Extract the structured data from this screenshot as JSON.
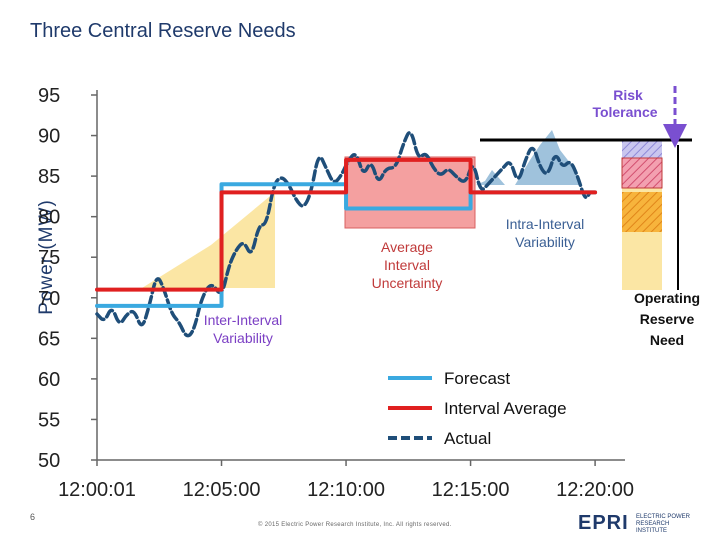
{
  "title": "Three Central Reserve Needs",
  "colors": {
    "forecast": "#3aa9e0",
    "interval_average": "#e02020",
    "actual": "#1f4e79",
    "uncertainty_fill": "#f4a0a0",
    "inter_interval_fill": "#fbe6a4",
    "intra_interval_fill": "#9fc2dc",
    "risk_tolerance": "#7a4fd0",
    "inter_label": "#7b3fc4",
    "intra_label": "#3a5f94",
    "avg_label": "#c03a3a"
  },
  "annotations": {
    "risk_tolerance": "Risk Tolerance",
    "average_interval_uncertainty": "Average Interval Uncertainty",
    "intra_interval_variability": "Intra-Interval Variability",
    "inter_interval_variability": "Inter-Interval Variability",
    "operating_reserve_need": "Operating Reserve Need"
  },
  "footer": {
    "page_number": "6",
    "copyright": "© 2015 Electric Power Research Institute, Inc. All rights reserved.",
    "logo_mark": "EPRI",
    "logo_text": "ELECTRIC POWER RESEARCH INSTITUTE"
  },
  "chart_data": {
    "type": "line",
    "title": "Three Central Reserve Needs",
    "xlabel": "",
    "ylabel": "Power (MW)",
    "ylim": [
      50,
      95
    ],
    "yticks": [
      95,
      90,
      85,
      80,
      75,
      70,
      65,
      60,
      55,
      50
    ],
    "xticks": [
      "12:00:01",
      "12:05:00",
      "12:10:00",
      "12:15:00",
      "12:20:00"
    ],
    "xlim_minutes": [
      0,
      21
    ],
    "legend_position": "bottom-right",
    "grid": false,
    "series": [
      {
        "name": "Forecast",
        "style": "step",
        "points": [
          [
            0,
            69
          ],
          [
            5,
            69
          ],
          [
            5,
            84
          ],
          [
            10,
            84
          ],
          [
            10,
            81
          ],
          [
            15,
            81
          ],
          [
            15,
            83
          ],
          [
            20,
            83
          ]
        ]
      },
      {
        "name": "Interval Average",
        "style": "step",
        "points": [
          [
            0,
            71
          ],
          [
            5,
            71
          ],
          [
            5,
            83
          ],
          [
            10,
            83
          ],
          [
            10,
            87
          ],
          [
            15,
            87
          ],
          [
            15,
            83
          ],
          [
            20,
            83
          ]
        ]
      },
      {
        "name": "Actual",
        "style": "dashed",
        "points": [
          [
            0,
            68
          ],
          [
            0.3,
            67
          ],
          [
            0.6,
            69
          ],
          [
            0.9,
            66.5
          ],
          [
            1.2,
            68
          ],
          [
            1.5,
            68.5
          ],
          [
            1.8,
            66
          ],
          [
            2.1,
            69
          ],
          [
            2.4,
            73
          ],
          [
            2.7,
            71
          ],
          [
            3.0,
            68
          ],
          [
            3.3,
            67
          ],
          [
            3.6,
            65
          ],
          [
            3.9,
            66
          ],
          [
            4.2,
            70
          ],
          [
            4.6,
            72
          ],
          [
            5.0,
            70
          ],
          [
            5.3,
            74
          ],
          [
            5.6,
            76
          ],
          [
            5.9,
            77
          ],
          [
            6.2,
            75
          ],
          [
            6.5,
            79
          ],
          [
            6.8,
            79
          ],
          [
            7.1,
            84
          ],
          [
            7.4,
            85
          ],
          [
            7.7,
            84
          ],
          [
            8.0,
            82
          ],
          [
            8.3,
            81
          ],
          [
            8.6,
            83
          ],
          [
            8.9,
            88
          ],
          [
            9.2,
            86
          ],
          [
            9.5,
            84
          ],
          [
            9.8,
            85
          ],
          [
            10.1,
            87
          ],
          [
            10.4,
            88
          ],
          [
            10.7,
            85
          ],
          [
            11.0,
            87
          ],
          [
            11.3,
            84
          ],
          [
            11.6,
            86
          ],
          [
            12.0,
            86
          ],
          [
            12.3,
            89
          ],
          [
            12.6,
            91
          ],
          [
            12.9,
            87
          ],
          [
            13.2,
            88
          ],
          [
            13.5,
            86
          ],
          [
            13.8,
            85
          ],
          [
            14.1,
            86
          ],
          [
            14.4,
            85
          ],
          [
            14.8,
            84
          ],
          [
            15.1,
            87
          ],
          [
            15.4,
            83
          ],
          [
            15.7,
            84
          ],
          [
            16.0,
            85
          ],
          [
            16.3,
            86
          ],
          [
            16.6,
            87
          ],
          [
            16.9,
            84
          ],
          [
            17.2,
            87
          ],
          [
            17.5,
            89
          ],
          [
            17.8,
            86
          ],
          [
            18.1,
            85
          ],
          [
            18.4,
            88
          ],
          [
            18.7,
            86
          ],
          [
            19.0,
            87
          ],
          [
            19.3,
            85
          ],
          [
            19.6,
            82
          ],
          [
            19.8,
            83
          ]
        ]
      }
    ],
    "legend": [
      "Forecast",
      "Interval Average",
      "Actual"
    ]
  }
}
